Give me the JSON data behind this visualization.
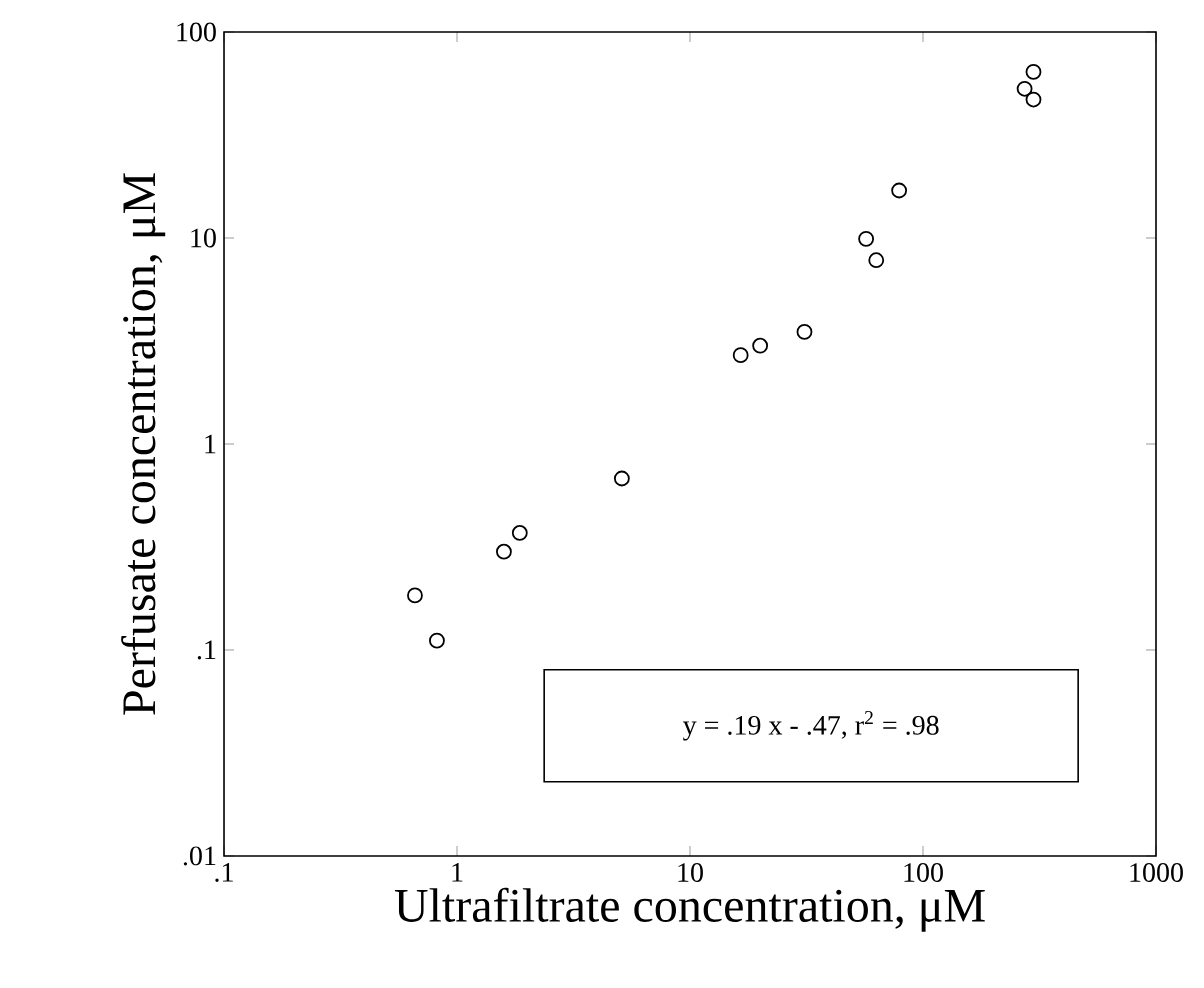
{
  "chart_data": {
    "type": "scatter",
    "xlabel": "Ultrafiltrate concentration, μM",
    "ylabel": "Perfusate concentration, μM",
    "x": [
      0.66,
      0.82,
      1.59,
      1.86,
      5.1,
      16.5,
      20,
      31,
      57,
      63,
      79,
      273,
      298,
      298
    ],
    "values": [
      0.184,
      0.111,
      0.3,
      0.37,
      0.68,
      2.7,
      3.0,
      3.5,
      9.9,
      7.8,
      17,
      53,
      64,
      47
    ],
    "color": "#000000",
    "marker": "circle",
    "log": "xy",
    "grid": false,
    "xlim": [
      0.1,
      1000
    ],
    "xticks": [
      {
        "value": 0.1,
        "label": ".1"
      },
      1,
      10,
      100,
      1000
    ],
    "ylim": [
      0.01,
      100
    ],
    "yticks": [
      {
        "value": 0.01,
        "label": ".01"
      },
      {
        "value": 0.1,
        "label": ".1"
      },
      1,
      10,
      100
    ],
    "annotations": [
      "y = .19 x - .47, r$^{2}$ = .98"
    ]
  }
}
